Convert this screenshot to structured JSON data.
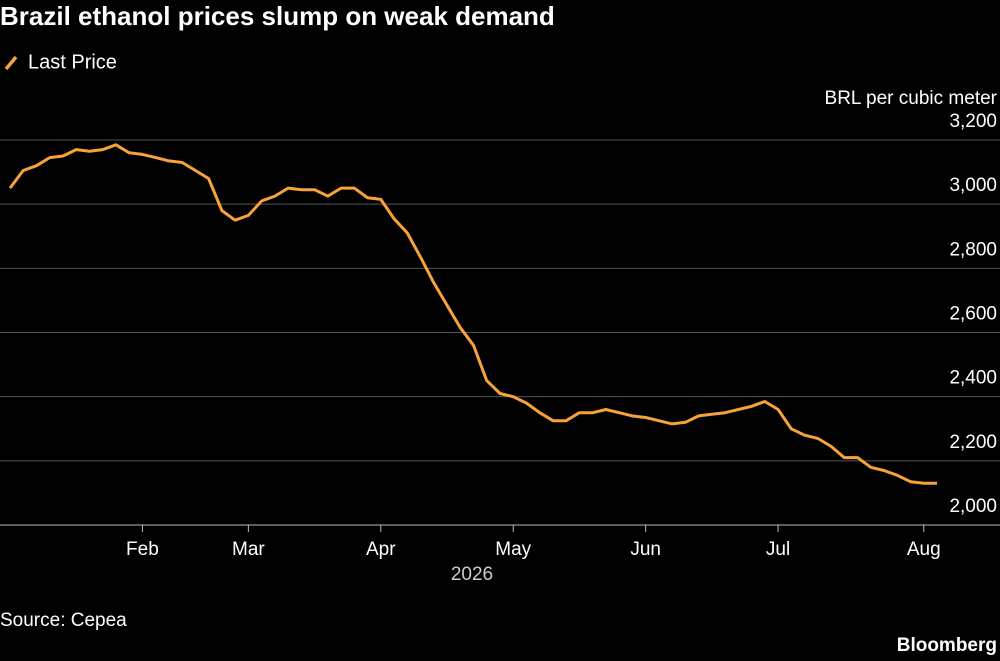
{
  "chart_data": {
    "type": "line",
    "title": "Brazil ethanol prices slump on weak demand",
    "y_label": "BRL per cubic meter",
    "x_label": "2026",
    "source": "Source: Cepea",
    "brand": "Bloomberg",
    "categories": [
      null,
      null,
      null,
      null,
      null,
      null,
      null,
      null,
      null,
      null,
      "Feb",
      null,
      null,
      null,
      null,
      null,
      null,
      null,
      "Mar",
      null,
      null,
      null,
      null,
      null,
      null,
      null,
      null,
      null,
      "Apr",
      null,
      null,
      null,
      null,
      null,
      null,
      null,
      null,
      null,
      "May",
      null,
      null,
      null,
      null,
      null,
      null,
      null,
      null,
      null,
      "Jun",
      null,
      null,
      null,
      null,
      null,
      null,
      null,
      null,
      null,
      "Jul",
      null,
      null,
      null,
      null,
      null,
      null,
      null,
      null,
      null,
      null,
      "Aug",
      null
    ],
    "series": [
      {
        "name": "Last Price",
        "color": "#f7a33a",
        "values": [
          3050,
          3105,
          3120,
          3145,
          3150,
          3170,
          3165,
          3170,
          3185,
          3160,
          3155,
          3145,
          3135,
          3130,
          3105,
          3080,
          2980,
          2950,
          2965,
          3010,
          3025,
          3050,
          3045,
          3045,
          3025,
          3050,
          3050,
          3020,
          3015,
          2955,
          2910,
          2835,
          2755,
          2685,
          2615,
          2560,
          2450,
          2410,
          2400,
          2380,
          2350,
          2325,
          2325,
          2350,
          2350,
          2360,
          2350,
          2340,
          2335,
          2325,
          2315,
          2320,
          2340,
          2345,
          2350,
          2360,
          2370,
          2385,
          2360,
          2300,
          2280,
          2270,
          2245,
          2210,
          2210,
          2180,
          2170,
          2155,
          2135,
          2130,
          2130
        ]
      }
    ],
    "ylim": [
      2000,
      3200
    ],
    "yticks": [
      {
        "value": 2000,
        "label": "2,000"
      },
      {
        "value": 2200,
        "label": "2,200"
      },
      {
        "value": 2400,
        "label": "2,400"
      },
      {
        "value": 2600,
        "label": "2,600"
      },
      {
        "value": 2800,
        "label": "2,800"
      },
      {
        "value": 3000,
        "label": "3,000"
      },
      {
        "value": 3200,
        "label": "3,200"
      }
    ],
    "grid": true
  }
}
